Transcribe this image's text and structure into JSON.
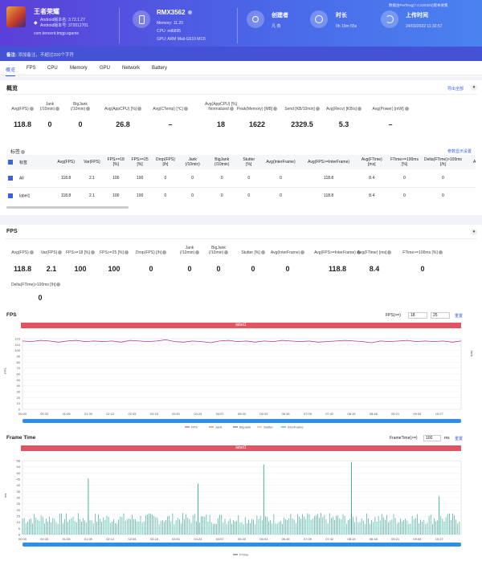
{
  "app": {
    "name": "王者荣耀",
    "android_version_label": "Android版本名: 3.72.1.27",
    "android_code_label": "Android版本号: 372012701",
    "package": "com.tencent.tmgp.sgame"
  },
  "device": {
    "name": "RMX3562",
    "memory": "Memory: 11.20",
    "cpu": "CPU: mt6895",
    "gpu": "GPU: ARM Mali-G610 MC6"
  },
  "creator": {
    "label": "创建者",
    "value": "凡 燕"
  },
  "duration": {
    "label": "时长",
    "value": "0h 10m 55s"
  },
  "upload": {
    "label": "上传时间",
    "value": "24/03/2022 11:32:57"
  },
  "header_right": "数据由PerfDog(7.0.220322)版本收集",
  "note": {
    "label": "备注:",
    "placeholder": "添加备注，不超过200个字符"
  },
  "tabs": [
    "概览",
    "FPS",
    "CPU",
    "Memory",
    "GPU",
    "Network",
    "Battery"
  ],
  "overview": {
    "title": "概览",
    "export": "导出全部",
    "metrics": [
      {
        "label": "Avg(FPS)",
        "value": "118.8"
      },
      {
        "label": "Jank\n(/10min)",
        "value": "0"
      },
      {
        "label": "BigJank\n(/10min)",
        "value": "0"
      },
      {
        "label": "Avg(AppCPU) [%]",
        "value": "26.8"
      },
      {
        "label": "Avg(CTemp) [℃]",
        "value": "–"
      },
      {
        "label": "Avg(AppCPU) [%]\nNormalized",
        "value": "18"
      },
      {
        "label": "Peak(Memory) [MB]",
        "value": "1622"
      },
      {
        "label": "Send [KB/10min]",
        "value": "2329.5"
      },
      {
        "label": "Avg(Recv) [KB/s]",
        "value": "5.3"
      },
      {
        "label": "Avg(Power) [mW]",
        "value": "–"
      }
    ]
  },
  "labels_table": {
    "title": "标签",
    "setting": "参数显示设置",
    "headers": [
      "标签",
      "Avg(FPS)",
      "Var(FPS)",
      "FPS>=18\n[%]",
      "FPS>=25\n[%]",
      "Drop(FPS)\n[/h]",
      "Jank\n(/10min)",
      "BigJank\n(/10min)",
      "Stutter\n[%]",
      "Avg(InterFrame)",
      "Avg(FPS>=InterFrame)",
      "Avg(FTime)\n[ms]",
      "FTime>=100ms\n[%]",
      "Delta(FTime)>100ms\n[/h]",
      "Avg"
    ],
    "rows": [
      [
        "All",
        "118.8",
        "2.1",
        "100",
        "100",
        "0",
        "0",
        "0",
        "0",
        "0",
        "118.8",
        "8.4",
        "0",
        "0"
      ],
      [
        "label1",
        "118.8",
        "2.1",
        "100",
        "100",
        "0",
        "0",
        "0",
        "0",
        "0",
        "118.8",
        "8.4",
        "0",
        "0"
      ]
    ]
  },
  "fps_section": {
    "title": "FPS",
    "metrics": [
      {
        "label": "Avg(FPS)",
        "value": "118.8"
      },
      {
        "label": "Var(FPS)",
        "value": "2.1"
      },
      {
        "label": "FPS>=18 [%]",
        "value": "100"
      },
      {
        "label": "FPS>=25 [%]",
        "value": "100"
      },
      {
        "label": "Drop(FPS) [/h]",
        "value": "0"
      },
      {
        "label": "Jank\n(/10min)",
        "value": "0"
      },
      {
        "label": "BigJank\n(/10min)",
        "value": "0"
      },
      {
        "label": "Stutter [%]",
        "value": "0"
      },
      {
        "label": "Avg(InterFrame)",
        "value": "0"
      },
      {
        "label": "Avg(FPS>=InterFrame)",
        "value": "118.8"
      },
      {
        "label": "Avg(FTime) [ms]",
        "value": "8.4"
      },
      {
        "label": "FTime>=100ms [%]",
        "value": "0"
      }
    ],
    "delta": {
      "label": "Delta(FTime)>100ms [/h]",
      "value": "0"
    }
  },
  "fps_chart": {
    "title": "FPS",
    "ctrl_label": "FPS(>=)",
    "v1": "18",
    "v2": "25",
    "reset": "重置",
    "band": "label1",
    "ylabel": "FPS",
    "yright": "Jank",
    "yticks": [
      "123",
      "110",
      "100",
      "90",
      "80",
      "70",
      "60",
      "50",
      "40",
      "30",
      "20",
      "10",
      "0"
    ],
    "xticks": [
      "00:00",
      "00:33",
      "01:06",
      "01:39",
      "02:12",
      "02:45",
      "03:18",
      "03:51",
      "04:24",
      "04:57",
      "05:30",
      "06:03",
      "06:36",
      "07:09",
      "07:42",
      "08:15",
      "08:48",
      "09:21",
      "09:54",
      "10:27"
    ],
    "legend": [
      "FPS",
      "Jank",
      "BigJank",
      "Stutter",
      "InterFrame"
    ]
  },
  "ft_chart": {
    "title": "Frame Time",
    "ctrl_label": "FrameTime(>=)",
    "v1": "100",
    "unit": "ms",
    "reset": "重置",
    "band": "label1",
    "ylabel": "ms",
    "yticks": [
      "58",
      "54",
      "50",
      "45",
      "40",
      "35",
      "30",
      "25",
      "20",
      "15",
      "10",
      "5",
      "0"
    ],
    "legend": [
      "FTime"
    ]
  },
  "colors": {
    "accent": "#3a62e0",
    "fps": "#b02fa0",
    "ftime": "#1aa386",
    "band": "#e05562"
  },
  "chart_data": [
    {
      "type": "line",
      "title": "FPS",
      "ylabel": "FPS",
      "ylim": [
        0,
        123
      ],
      "series": [
        {
          "name": "FPS",
          "mean": 118.8,
          "values": [
            119,
            118,
            120,
            119,
            117,
            119,
            120,
            118,
            119,
            118,
            119,
            117,
            120,
            119,
            118,
            119,
            121,
            118,
            117,
            119,
            118,
            116,
            119,
            120,
            118,
            119,
            117,
            119,
            118,
            120,
            119,
            118,
            119,
            117,
            118,
            119,
            120,
            119,
            118,
            116,
            119,
            118,
            119,
            120,
            118,
            119,
            118,
            119,
            117,
            119
          ]
        }
      ],
      "x_ticks": [
        "00:00",
        "00:33",
        "01:06",
        "01:39",
        "02:12",
        "02:45",
        "03:18",
        "03:51",
        "04:24",
        "04:57",
        "05:30",
        "06:03",
        "06:36",
        "07:09",
        "07:42",
        "08:15",
        "08:48",
        "09:21",
        "09:54",
        "10:27"
      ]
    },
    {
      "type": "bar",
      "title": "Frame Time",
      "ylabel": "ms",
      "ylim": [
        0,
        58
      ],
      "series": [
        {
          "name": "FTime",
          "spikes": [
            {
              "x": "01:39",
              "value": 44
            },
            {
              "x": "04:24",
              "value": 40
            },
            {
              "x": "06:03",
              "value": 55
            },
            {
              "x": "08:15",
              "value": 57
            },
            {
              "x": "10:27",
              "value": 30
            }
          ],
          "baseline": [
            8,
            17
          ]
        }
      ]
    }
  ]
}
